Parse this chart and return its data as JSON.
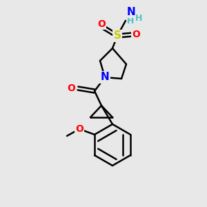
{
  "background_color": "#e8e8e8",
  "bond_color": "#000000",
  "bond_lw": 1.8,
  "atom_colors": {
    "N": "#0000ff",
    "O": "#ff0000",
    "S": "#cccc00",
    "C": "#000000",
    "H": "#4fc4c4"
  },
  "font_size": 10,
  "font_size_small": 8
}
